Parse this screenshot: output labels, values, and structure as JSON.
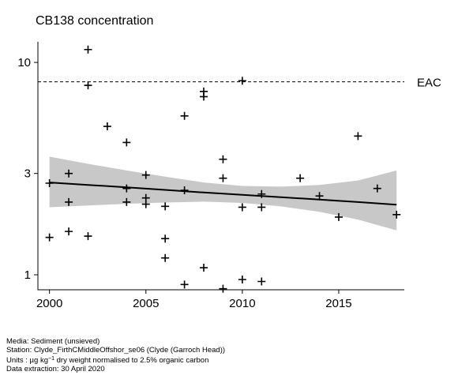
{
  "chart_data": {
    "type": "scatter",
    "title": "CB138 concentration",
    "y_scale": "log",
    "xlim": [
      1999.4,
      2018.4
    ],
    "ylim": [
      0.85,
      12.5
    ],
    "x_ticks": [
      2000,
      2005,
      2010,
      2015
    ],
    "x_tick_labels": [
      "2000",
      "2005",
      "2010",
      "2015"
    ],
    "y_ticks": [
      1,
      3,
      10
    ],
    "y_tick_labels": [
      "1",
      "3",
      "10"
    ],
    "eac": {
      "value": 8.1,
      "label": "EAC"
    },
    "points": [
      {
        "x": 2000,
        "y": 2.7
      },
      {
        "x": 2000,
        "y": 1.5
      },
      {
        "x": 2001,
        "y": 3.0
      },
      {
        "x": 2001,
        "y": 2.2
      },
      {
        "x": 2001,
        "y": 1.6
      },
      {
        "x": 2002,
        "y": 11.5
      },
      {
        "x": 2002,
        "y": 7.8
      },
      {
        "x": 2002,
        "y": 1.52
      },
      {
        "x": 2003,
        "y": 5.0
      },
      {
        "x": 2004,
        "y": 4.2
      },
      {
        "x": 2004,
        "y": 2.55
      },
      {
        "x": 2004,
        "y": 2.2
      },
      {
        "x": 2005,
        "y": 2.95
      },
      {
        "x": 2005,
        "y": 2.3
      },
      {
        "x": 2005,
        "y": 2.15
      },
      {
        "x": 2006,
        "y": 2.1
      },
      {
        "x": 2006,
        "y": 1.48
      },
      {
        "x": 2006,
        "y": 1.2
      },
      {
        "x": 2007,
        "y": 5.6
      },
      {
        "x": 2007,
        "y": 2.5
      },
      {
        "x": 2007,
        "y": 0.9
      },
      {
        "x": 2008,
        "y": 7.3
      },
      {
        "x": 2008,
        "y": 6.9
      },
      {
        "x": 2008,
        "y": 1.08
      },
      {
        "x": 2009,
        "y": 3.5
      },
      {
        "x": 2009,
        "y": 2.85
      },
      {
        "x": 2009,
        "y": 0.86
      },
      {
        "x": 2010,
        "y": 8.2
      },
      {
        "x": 2010,
        "y": 2.08
      },
      {
        "x": 2010,
        "y": 0.95
      },
      {
        "x": 2011,
        "y": 2.4
      },
      {
        "x": 2011,
        "y": 2.08
      },
      {
        "x": 2011,
        "y": 0.93
      },
      {
        "x": 2013,
        "y": 2.85
      },
      {
        "x": 2014,
        "y": 2.35
      },
      {
        "x": 2015,
        "y": 1.87
      },
      {
        "x": 2016,
        "y": 4.5
      },
      {
        "x": 2017,
        "y": 2.55
      },
      {
        "x": 2018,
        "y": 1.92
      }
    ],
    "trend": {
      "x": [
        2000,
        2002,
        2004,
        2006,
        2008,
        2010,
        2012,
        2014,
        2016,
        2018
      ],
      "fit": [
        2.72,
        2.65,
        2.58,
        2.51,
        2.44,
        2.38,
        2.32,
        2.26,
        2.2,
        2.14
      ],
      "lower": [
        2.08,
        2.12,
        2.16,
        2.19,
        2.21,
        2.18,
        2.1,
        1.98,
        1.82,
        1.62
      ],
      "upper": [
        3.6,
        3.33,
        3.1,
        2.9,
        2.72,
        2.62,
        2.6,
        2.65,
        2.78,
        3.1
      ]
    }
  },
  "footer": {
    "media": "Media: Sediment (unsieved)",
    "station": "Station: Clyde_FirthCMiddleOffshor_se06 (Clyde (Garroch Head))",
    "units_pre": "Units : µg kg",
    "units_sup": "−1",
    "units_post": " dry weight normalised to 2.5% organic carbon",
    "extraction": "Data extraction: 30 April 2020"
  },
  "colors": {
    "band": "#c8c8c8",
    "line": "#000000"
  }
}
